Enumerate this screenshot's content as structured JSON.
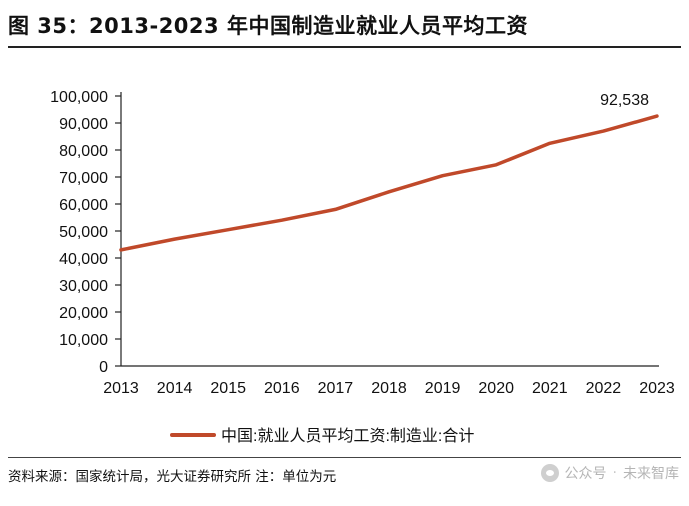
{
  "header": {
    "title": "图 35：2013-2023 年中国制造业就业人员平均工资"
  },
  "footer": {
    "source": "资料来源：国家统计局，光大证券研究所 注：单位为元"
  },
  "watermark": {
    "label": "公众号",
    "name": "未来智库"
  },
  "colors": {
    "line": "#C0492A",
    "axis": "#222222"
  },
  "chart_data": {
    "type": "line",
    "x": [
      "2013",
      "2014",
      "2015",
      "2016",
      "2017",
      "2018",
      "2019",
      "2020",
      "2021",
      "2022",
      "2023"
    ],
    "series": [
      {
        "name": "中国:就业人员平均工资:制造业:合计",
        "values": [
          43000,
          47000,
          50500,
          54000,
          58000,
          64500,
          70500,
          74500,
          82500,
          87000,
          92538
        ]
      }
    ],
    "yticks": [
      "0",
      "10,000",
      "20,000",
      "30,000",
      "40,000",
      "50,000",
      "60,000",
      "70,000",
      "80,000",
      "90,000",
      "100,000"
    ],
    "ylim": [
      0,
      100000
    ],
    "grid": false,
    "legend": "bottom",
    "annotation": {
      "text": "92,538",
      "x": "2023",
      "y": 92538
    }
  }
}
